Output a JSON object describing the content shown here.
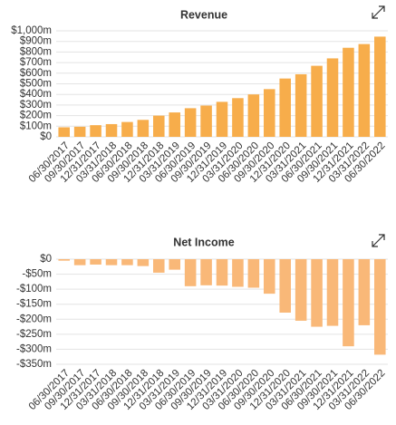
{
  "chart_data": [
    {
      "type": "bar",
      "title": "Revenue",
      "categories": [
        "06/30/2017",
        "09/30/2017",
        "12/31/2017",
        "03/31/2018",
        "06/30/2018",
        "09/30/2018",
        "12/31/2018",
        "03/31/2019",
        "06/30/2019",
        "09/30/2019",
        "12/31/2019",
        "03/31/2020",
        "06/30/2020",
        "09/30/2020",
        "12/31/2020",
        "03/31/2021",
        "06/30/2021",
        "09/30/2021",
        "12/31/2021",
        "03/31/2022",
        "06/30/2022"
      ],
      "values": [
        90,
        95,
        110,
        120,
        140,
        160,
        200,
        230,
        270,
        295,
        330,
        365,
        400,
        450,
        550,
        590,
        670,
        740,
        840,
        875,
        945
      ],
      "color": "#f7ad4b",
      "ylim": [
        0,
        1000
      ],
      "yticks": [
        {
          "value": 0,
          "label": "$0"
        },
        {
          "value": 100,
          "label": "$100m"
        },
        {
          "value": 200,
          "label": "$200m"
        },
        {
          "value": 300,
          "label": "$300m"
        },
        {
          "value": 400,
          "label": "$400m"
        },
        {
          "value": 500,
          "label": "$500m"
        },
        {
          "value": 600,
          "label": "$600m"
        },
        {
          "value": 700,
          "label": "$700m"
        },
        {
          "value": 800,
          "label": "$800m"
        },
        {
          "value": 900,
          "label": "$900m"
        },
        {
          "value": 1000,
          "label": "$1,000m"
        }
      ],
      "grid": true
    },
    {
      "type": "bar",
      "title": "Net Income",
      "categories": [
        "06/30/2017",
        "09/30/2017",
        "12/31/2017",
        "03/31/2018",
        "06/30/2018",
        "09/30/2018",
        "12/31/2018",
        "03/31/2019",
        "06/30/2019",
        "09/30/2019",
        "12/31/2019",
        "03/31/2020",
        "06/30/2020",
        "09/30/2020",
        "12/31/2020",
        "03/31/2021",
        "06/30/2021",
        "09/30/2021",
        "12/31/2021",
        "03/31/2022",
        "06/30/2022"
      ],
      "values": [
        -5,
        -20,
        -18,
        -20,
        -20,
        -23,
        -45,
        -35,
        -90,
        -87,
        -88,
        -92,
        -95,
        -115,
        -178,
        -205,
        -225,
        -222,
        -290,
        -220,
        -318
      ],
      "color": "#f9b878",
      "ylim": [
        -350,
        0
      ],
      "yticks": [
        {
          "value": -350,
          "label": "-$350m"
        },
        {
          "value": -300,
          "label": "-$300m"
        },
        {
          "value": -250,
          "label": "-$250m"
        },
        {
          "value": -200,
          "label": "-$200m"
        },
        {
          "value": -150,
          "label": "-$150m"
        },
        {
          "value": -100,
          "label": "-$100m"
        },
        {
          "value": -50,
          "label": "-$50m"
        },
        {
          "value": 0,
          "label": "$0"
        }
      ],
      "grid": true
    }
  ]
}
